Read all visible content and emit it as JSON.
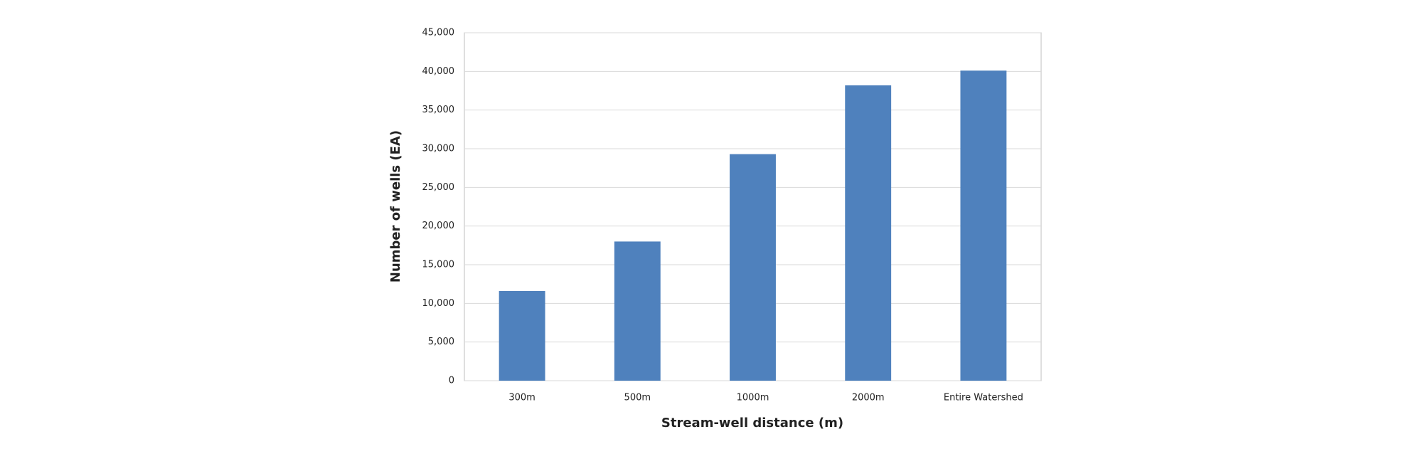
{
  "chart_data": {
    "type": "bar",
    "x_label": "Stream-well distance (m)",
    "y_label": "Number of wells (EA)",
    "categories": [
      "300m",
      "500m",
      "1000m",
      "2000m",
      "Entire Watershed"
    ],
    "values": [
      11600,
      18000,
      29300,
      38200,
      40100
    ],
    "color": "#4f81bd",
    "ylim": [
      0,
      45000
    ],
    "yticks": [
      0,
      {
        "value": 5000,
        "label": "5,000"
      },
      {
        "value": 10000,
        "label": "10,000"
      },
      {
        "value": 15000,
        "label": "15,000"
      },
      {
        "value": 20000,
        "label": "20,000"
      },
      {
        "value": 25000,
        "label": "25,000"
      },
      {
        "value": 30000,
        "label": "30,000"
      },
      {
        "value": 35000,
        "label": "35,000"
      },
      {
        "value": 40000,
        "label": "40,000"
      },
      {
        "value": 45000,
        "label": "45,000"
      }
    ],
    "grid": true
  }
}
